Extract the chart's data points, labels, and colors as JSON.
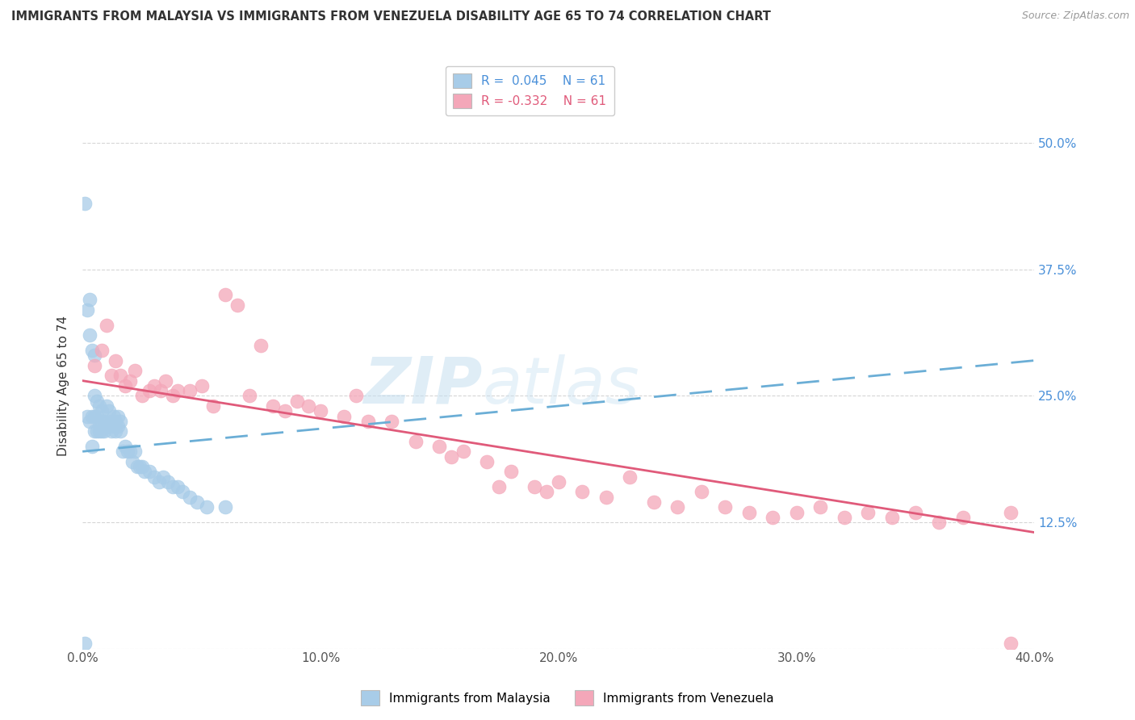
{
  "title": "IMMIGRANTS FROM MALAYSIA VS IMMIGRANTS FROM VENEZUELA DISABILITY AGE 65 TO 74 CORRELATION CHART",
  "source": "Source: ZipAtlas.com",
  "ylabel": "Disability Age 65 to 74",
  "legend_label1": "Immigrants from Malaysia",
  "legend_label2": "Immigrants from Venezuela",
  "r1": 0.045,
  "n1": 61,
  "r2": -0.332,
  "n2": 61,
  "xlim": [
    0.0,
    0.4
  ],
  "ylim": [
    0.0,
    0.52
  ],
  "xticks": [
    0.0,
    0.1,
    0.2,
    0.3,
    0.4
  ],
  "xtick_labels": [
    "0.0%",
    "10.0%",
    "20.0%",
    "30.0%",
    "40.0%"
  ],
  "yticks": [
    0.0,
    0.125,
    0.25,
    0.375,
    0.5
  ],
  "ytick_labels": [
    "",
    "12.5%",
    "25.0%",
    "37.5%",
    "50.0%"
  ],
  "color_malaysia": "#a8cce8",
  "color_venezuela": "#f4a7b9",
  "color_line_malaysia": "#6baed6",
  "color_line_venezuela": "#e05a7a",
  "background": "#ffffff",
  "malaysia_x": [
    0.001,
    0.002,
    0.002,
    0.003,
    0.003,
    0.003,
    0.004,
    0.004,
    0.004,
    0.005,
    0.005,
    0.005,
    0.005,
    0.006,
    0.006,
    0.006,
    0.007,
    0.007,
    0.007,
    0.008,
    0.008,
    0.008,
    0.009,
    0.009,
    0.01,
    0.01,
    0.011,
    0.011,
    0.012,
    0.012,
    0.013,
    0.013,
    0.014,
    0.014,
    0.015,
    0.015,
    0.016,
    0.016,
    0.017,
    0.018,
    0.019,
    0.02,
    0.021,
    0.022,
    0.023,
    0.024,
    0.025,
    0.026,
    0.028,
    0.03,
    0.032,
    0.034,
    0.036,
    0.038,
    0.04,
    0.042,
    0.045,
    0.048,
    0.052,
    0.06,
    0.001
  ],
  "malaysia_y": [
    0.44,
    0.335,
    0.23,
    0.345,
    0.31,
    0.225,
    0.295,
    0.23,
    0.2,
    0.29,
    0.25,
    0.23,
    0.215,
    0.245,
    0.23,
    0.215,
    0.24,
    0.225,
    0.215,
    0.235,
    0.225,
    0.215,
    0.225,
    0.215,
    0.24,
    0.22,
    0.235,
    0.22,
    0.225,
    0.215,
    0.23,
    0.22,
    0.225,
    0.215,
    0.23,
    0.22,
    0.225,
    0.215,
    0.195,
    0.2,
    0.195,
    0.195,
    0.185,
    0.195,
    0.18,
    0.18,
    0.18,
    0.175,
    0.175,
    0.17,
    0.165,
    0.17,
    0.165,
    0.16,
    0.16,
    0.155,
    0.15,
    0.145,
    0.14,
    0.14,
    0.005
  ],
  "venezuela_x": [
    0.005,
    0.008,
    0.01,
    0.012,
    0.014,
    0.016,
    0.018,
    0.02,
    0.022,
    0.025,
    0.028,
    0.03,
    0.033,
    0.035,
    0.038,
    0.04,
    0.045,
    0.05,
    0.055,
    0.06,
    0.065,
    0.07,
    0.075,
    0.08,
    0.085,
    0.09,
    0.095,
    0.1,
    0.11,
    0.115,
    0.12,
    0.13,
    0.14,
    0.15,
    0.155,
    0.16,
    0.17,
    0.175,
    0.18,
    0.19,
    0.195,
    0.2,
    0.21,
    0.22,
    0.23,
    0.24,
    0.25,
    0.26,
    0.27,
    0.28,
    0.29,
    0.3,
    0.31,
    0.32,
    0.33,
    0.34,
    0.35,
    0.36,
    0.37,
    0.39,
    0.39
  ],
  "venezuela_y": [
    0.28,
    0.295,
    0.32,
    0.27,
    0.285,
    0.27,
    0.26,
    0.265,
    0.275,
    0.25,
    0.255,
    0.26,
    0.255,
    0.265,
    0.25,
    0.255,
    0.255,
    0.26,
    0.24,
    0.35,
    0.34,
    0.25,
    0.3,
    0.24,
    0.235,
    0.245,
    0.24,
    0.235,
    0.23,
    0.25,
    0.225,
    0.225,
    0.205,
    0.2,
    0.19,
    0.195,
    0.185,
    0.16,
    0.175,
    0.16,
    0.155,
    0.165,
    0.155,
    0.15,
    0.17,
    0.145,
    0.14,
    0.155,
    0.14,
    0.135,
    0.13,
    0.135,
    0.14,
    0.13,
    0.135,
    0.13,
    0.135,
    0.125,
    0.13,
    0.135,
    0.005
  ],
  "malaysia_line_x": [
    0.0,
    0.4
  ],
  "malaysia_line_y": [
    0.195,
    0.285
  ],
  "venezuela_line_x": [
    0.0,
    0.4
  ],
  "venezuela_line_y": [
    0.265,
    0.115
  ]
}
